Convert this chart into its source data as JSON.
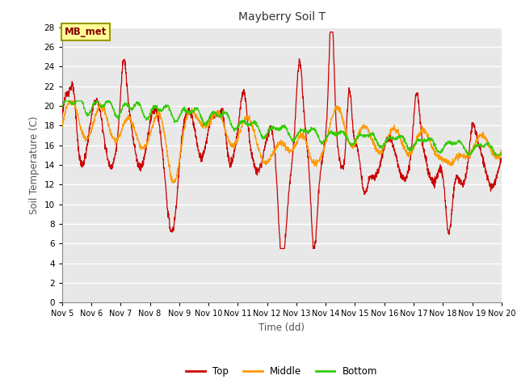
{
  "title": "Mayberry Soil T",
  "xlabel": "Time (dd)",
  "ylabel": "Soil Temperature (C)",
  "ylim": [
    0,
    28
  ],
  "yticks": [
    0,
    2,
    4,
    6,
    8,
    10,
    12,
    14,
    16,
    18,
    20,
    22,
    24,
    26,
    28
  ],
  "xlim": [
    5.0,
    20.0
  ],
  "xtick_labels": [
    "Nov 5",
    "Nov 6",
    "Nov 7",
    "Nov 8",
    "Nov 9",
    "Nov 10",
    "Nov 11",
    "Nov 12",
    "Nov 13",
    "Nov 14",
    "Nov 15",
    "Nov 16",
    "Nov 17",
    "Nov 18",
    "Nov 19",
    "Nov 20"
  ],
  "xtick_positions": [
    5,
    6,
    7,
    8,
    9,
    10,
    11,
    12,
    13,
    14,
    15,
    16,
    17,
    18,
    19,
    20
  ],
  "top_color": "#cc0000",
  "middle_color": "#ff9900",
  "bottom_color": "#33cc00",
  "plot_bg_color": "#e8e8e8",
  "fig_bg_color": "#ffffff",
  "legend_label": "MB_met",
  "legend_box_facecolor": "#ffff99",
  "legend_box_edgecolor": "#999900",
  "legend_text_color": "#880000",
  "grid_color": "#ffffff",
  "series_labels": [
    "Top",
    "Middle",
    "Bottom"
  ]
}
